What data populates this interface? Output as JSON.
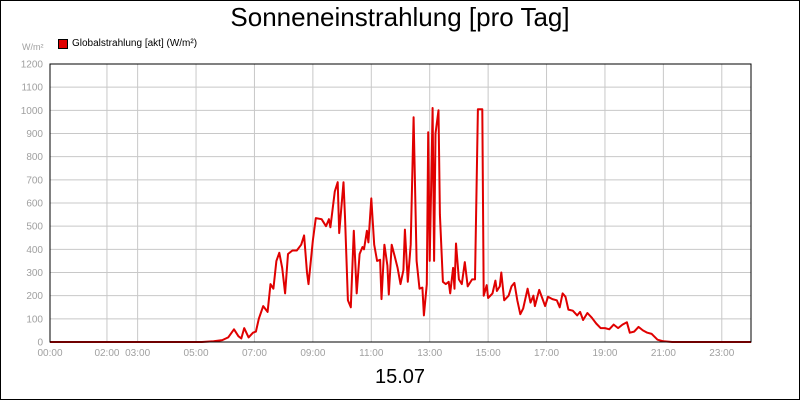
{
  "chart_data": {
    "type": "line",
    "title": "Sonneneinstrahlung [pro Tag]",
    "footer": "15.07",
    "y_unit": "W/m²",
    "ylim": [
      0,
      1200
    ],
    "y_ticks": [
      0,
      100,
      200,
      300,
      400,
      500,
      600,
      700,
      800,
      900,
      1000,
      1100,
      1200
    ],
    "xlim": [
      0,
      24
    ],
    "x_ticks": [
      {
        "label": "00:00",
        "value": 0
      },
      {
        "label": "02:00",
        "value": 1.95
      },
      {
        "label": "03:00",
        "value": 3
      },
      {
        "label": "05:00",
        "value": 5
      },
      {
        "label": "07:00",
        "value": 7
      },
      {
        "label": "09:00",
        "value": 9
      },
      {
        "label": "11:00",
        "value": 11
      },
      {
        "label": "13:00",
        "value": 13
      },
      {
        "label": "15:00",
        "value": 15
      },
      {
        "label": "17:00",
        "value": 17
      },
      {
        "label": "19:00",
        "value": 19
      },
      {
        "label": "21:00",
        "value": 21
      },
      {
        "label": "23:00",
        "value": 23
      }
    ],
    "grid": true,
    "legend_position": "top-left",
    "series": [
      {
        "name": "Globalstrahlung [akt] (W/m²)",
        "color": "#e00000",
        "points": [
          [
            0,
            0
          ],
          [
            5.2,
            0
          ],
          [
            5.6,
            3
          ],
          [
            5.9,
            8
          ],
          [
            6.1,
            20
          ],
          [
            6.3,
            55
          ],
          [
            6.45,
            25
          ],
          [
            6.55,
            15
          ],
          [
            6.65,
            60
          ],
          [
            6.8,
            20
          ],
          [
            6.95,
            40
          ],
          [
            7.05,
            45
          ],
          [
            7.15,
            100
          ],
          [
            7.3,
            155
          ],
          [
            7.45,
            130
          ],
          [
            7.55,
            250
          ],
          [
            7.65,
            230
          ],
          [
            7.75,
            350
          ],
          [
            7.85,
            385
          ],
          [
            7.95,
            320
          ],
          [
            8.05,
            210
          ],
          [
            8.15,
            380
          ],
          [
            8.3,
            395
          ],
          [
            8.45,
            395
          ],
          [
            8.6,
            420
          ],
          [
            8.7,
            460
          ],
          [
            8.8,
            300
          ],
          [
            8.85,
            250
          ],
          [
            9.0,
            440
          ],
          [
            9.1,
            535
          ],
          [
            9.3,
            530
          ],
          [
            9.45,
            500
          ],
          [
            9.55,
            530
          ],
          [
            9.6,
            495
          ],
          [
            9.75,
            650
          ],
          [
            9.85,
            690
          ],
          [
            9.9,
            470
          ],
          [
            10.05,
            690
          ],
          [
            10.1,
            540
          ],
          [
            10.2,
            180
          ],
          [
            10.3,
            150
          ],
          [
            10.4,
            480
          ],
          [
            10.5,
            210
          ],
          [
            10.6,
            380
          ],
          [
            10.7,
            410
          ],
          [
            10.75,
            400
          ],
          [
            10.85,
            480
          ],
          [
            10.9,
            430
          ],
          [
            11.0,
            620
          ],
          [
            11.1,
            420
          ],
          [
            11.2,
            350
          ],
          [
            11.3,
            355
          ],
          [
            11.35,
            185
          ],
          [
            11.45,
            420
          ],
          [
            11.55,
            330
          ],
          [
            11.6,
            205
          ],
          [
            11.7,
            420
          ],
          [
            11.8,
            370
          ],
          [
            11.9,
            320
          ],
          [
            12.0,
            250
          ],
          [
            12.1,
            310
          ],
          [
            12.15,
            485
          ],
          [
            12.25,
            260
          ],
          [
            12.35,
            420
          ],
          [
            12.45,
            970
          ],
          [
            12.55,
            350
          ],
          [
            12.65,
            230
          ],
          [
            12.75,
            235
          ],
          [
            12.8,
            115
          ],
          [
            12.9,
            250
          ],
          [
            12.95,
            905
          ],
          [
            13.0,
            350
          ],
          [
            13.05,
            680
          ],
          [
            13.1,
            1010
          ],
          [
            13.15,
            350
          ],
          [
            13.2,
            900
          ],
          [
            13.3,
            1000
          ],
          [
            13.35,
            550
          ],
          [
            13.45,
            260
          ],
          [
            13.55,
            250
          ],
          [
            13.65,
            260
          ],
          [
            13.7,
            210
          ],
          [
            13.8,
            320
          ],
          [
            13.85,
            230
          ],
          [
            13.9,
            425
          ],
          [
            14.0,
            270
          ],
          [
            14.1,
            250
          ],
          [
            14.2,
            345
          ],
          [
            14.3,
            240
          ],
          [
            14.45,
            270
          ],
          [
            14.55,
            270
          ],
          [
            14.65,
            1005
          ],
          [
            14.8,
            1005
          ],
          [
            14.85,
            200
          ],
          [
            14.95,
            245
          ],
          [
            15.0,
            190
          ],
          [
            15.15,
            210
          ],
          [
            15.25,
            265
          ],
          [
            15.3,
            220
          ],
          [
            15.4,
            240
          ],
          [
            15.45,
            300
          ],
          [
            15.55,
            180
          ],
          [
            15.7,
            200
          ],
          [
            15.8,
            240
          ],
          [
            15.9,
            255
          ],
          [
            16.0,
            180
          ],
          [
            16.1,
            120
          ],
          [
            16.2,
            145
          ],
          [
            16.35,
            230
          ],
          [
            16.45,
            170
          ],
          [
            16.55,
            200
          ],
          [
            16.6,
            155
          ],
          [
            16.75,
            225
          ],
          [
            16.85,
            190
          ],
          [
            16.95,
            155
          ],
          [
            17.05,
            195
          ],
          [
            17.2,
            185
          ],
          [
            17.35,
            180
          ],
          [
            17.45,
            150
          ],
          [
            17.55,
            210
          ],
          [
            17.65,
            195
          ],
          [
            17.75,
            140
          ],
          [
            17.9,
            135
          ],
          [
            18.05,
            115
          ],
          [
            18.15,
            130
          ],
          [
            18.25,
            95
          ],
          [
            18.4,
            125
          ],
          [
            18.55,
            105
          ],
          [
            18.7,
            80
          ],
          [
            18.85,
            60
          ],
          [
            19.0,
            60
          ],
          [
            19.15,
            55
          ],
          [
            19.3,
            75
          ],
          [
            19.45,
            60
          ],
          [
            19.6,
            75
          ],
          [
            19.75,
            85
          ],
          [
            19.85,
            40
          ],
          [
            20.0,
            45
          ],
          [
            20.15,
            65
          ],
          [
            20.3,
            50
          ],
          [
            20.45,
            40
          ],
          [
            20.6,
            35
          ],
          [
            20.8,
            10
          ],
          [
            21.0,
            3
          ],
          [
            21.3,
            0
          ],
          [
            24,
            0
          ]
        ]
      }
    ]
  }
}
